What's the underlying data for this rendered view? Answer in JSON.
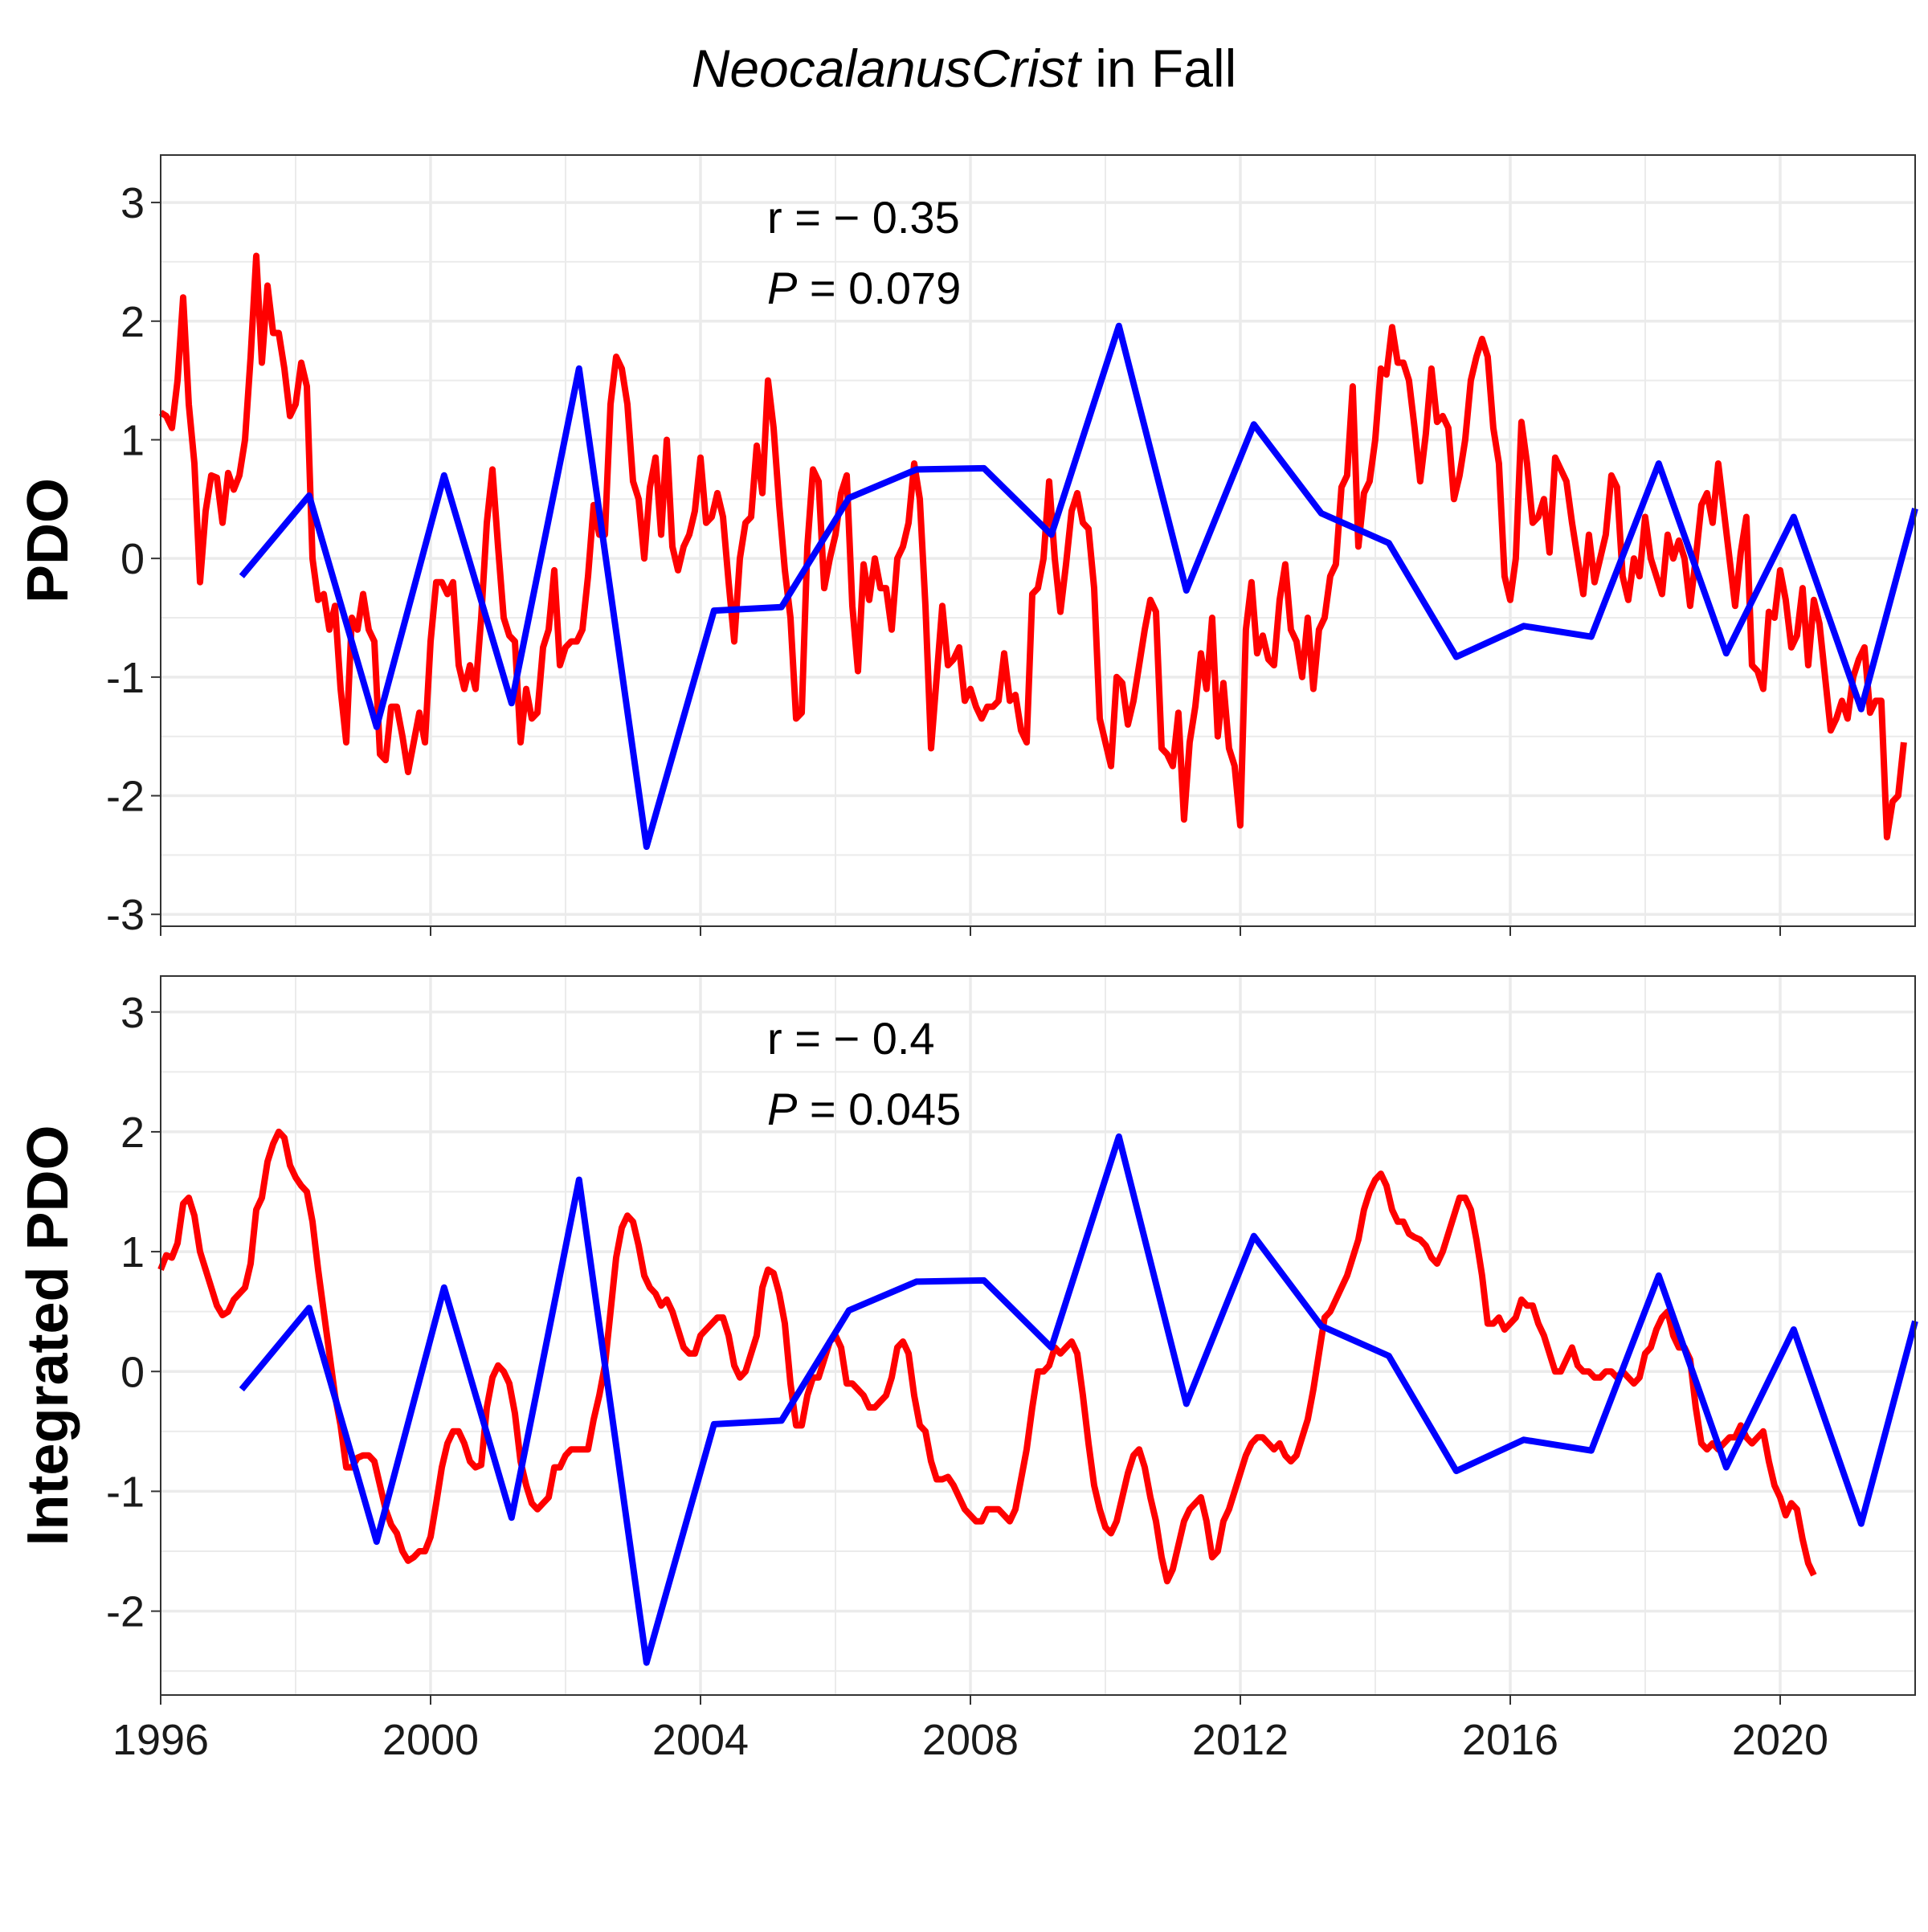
{
  "figure": {
    "title_italic": "NeocalanusCrist",
    "title_rest": " in Fall"
  },
  "colors": {
    "index_line": "#ff0000",
    "abundance_line": "#0000ff",
    "grid": "#ebebeb",
    "panel_border": "#333333"
  },
  "chart_data": [
    {
      "type": "line",
      "ylabel": "PDO",
      "xlim": [
        1996,
        2022
      ],
      "ylim": [
        -3.1,
        3.4
      ],
      "y_ticks": [
        3,
        2,
        1,
        0,
        -1,
        -2,
        -3
      ],
      "y_tick_labels": [
        "3",
        "2",
        "1",
        "0",
        "-1",
        "-2",
        "-3"
      ],
      "grid": true,
      "annotation": {
        "r_label": "r = − 0.35",
        "p_symbol": "P",
        "p_rest": " = 0.079"
      },
      "series": [
        {
          "color": "red",
          "x_start": 1996.0,
          "x_step": 0.08333,
          "values": [
            1.23,
            1.2,
            1.1,
            1.5,
            2.2,
            1.3,
            0.8,
            -0.2,
            0.4,
            0.7,
            0.68,
            0.3,
            0.72,
            0.58,
            0.7,
            1.0,
            1.7,
            2.55,
            1.65,
            2.3,
            1.9,
            1.9,
            1.6,
            1.2,
            1.3,
            1.65,
            1.45,
            0.0,
            -0.35,
            -0.3,
            -0.6,
            -0.4,
            -1.1,
            -1.55,
            -0.5,
            -0.6,
            -0.3,
            -0.6,
            -0.7,
            -1.65,
            -1.7,
            -1.25,
            -1.25,
            -1.5,
            -1.8,
            -1.55,
            -1.3,
            -1.55,
            -0.7,
            -0.2,
            -0.2,
            -0.3,
            -0.2,
            -0.9,
            -1.1,
            -0.9,
            -1.1,
            -0.5,
            0.3,
            0.75,
            0.1,
            -0.5,
            -0.65,
            -0.7,
            -1.55,
            -1.1,
            -1.35,
            -1.3,
            -0.75,
            -0.6,
            -0.1,
            -0.9,
            -0.75,
            -0.7,
            -0.7,
            -0.6,
            -0.15,
            0.45,
            0.2,
            0.2,
            1.3,
            1.7,
            1.6,
            1.3,
            0.65,
            0.5,
            0.0,
            0.6,
            0.85,
            0.2,
            1.0,
            0.1,
            -0.1,
            0.1,
            0.2,
            0.4,
            0.85,
            0.3,
            0.35,
            0.55,
            0.35,
            -0.2,
            -0.7,
            0.0,
            0.3,
            0.35,
            0.95,
            0.55,
            1.5,
            1.1,
            0.45,
            -0.1,
            -0.5,
            -1.35,
            -1.3,
            0.1,
            0.75,
            0.65,
            -0.25,
            0.0,
            0.2,
            0.55,
            0.7,
            -0.4,
            -0.95,
            -0.05,
            -0.35,
            0.0,
            -0.25,
            -0.25,
            -0.6,
            0.0,
            0.1,
            0.3,
            0.8,
            0.5,
            -0.4,
            -1.6,
            -1.0,
            -0.4,
            -0.9,
            -0.85,
            -0.75,
            -1.2,
            -1.1,
            -1.25,
            -1.35,
            -1.25,
            -1.25,
            -1.2,
            -0.8,
            -1.2,
            -1.15,
            -1.45,
            -1.55,
            -0.3,
            -0.25,
            0.0,
            0.65,
            0.0,
            -0.45,
            -0.05,
            0.4,
            0.55,
            0.3,
            0.25,
            -0.25,
            -1.35,
            -1.55,
            -1.75,
            -1.0,
            -1.05,
            -1.4,
            -1.2,
            -0.9,
            -0.6,
            -0.35,
            -0.45,
            -1.6,
            -1.65,
            -1.75,
            -1.3,
            -2.2,
            -1.55,
            -1.25,
            -0.8,
            -1.1,
            -0.5,
            -1.5,
            -1.05,
            -1.6,
            -1.75,
            -2.25,
            -0.6,
            -0.2,
            -0.8,
            -0.65,
            -0.85,
            -0.9,
            -0.35,
            -0.05,
            -0.6,
            -0.7,
            -1.0,
            -0.5,
            -1.1,
            -0.6,
            -0.5,
            -0.15,
            -0.05,
            0.6,
            0.7,
            1.45,
            0.1,
            0.55,
            0.65,
            1.0,
            1.6,
            1.55,
            1.95,
            1.65,
            1.65,
            1.5,
            1.1,
            0.65,
            1.05,
            1.6,
            1.15,
            1.2,
            1.1,
            0.5,
            0.7,
            1.0,
            1.5,
            1.7,
            1.85,
            1.7,
            1.1,
            0.8,
            -0.15,
            -0.35,
            0.0,
            1.15,
            0.8,
            0.3,
            0.35,
            0.5,
            0.05,
            0.85,
            0.75,
            0.65,
            0.3,
            0.0,
            -0.3,
            0.2,
            -0.2,
            0.0,
            0.2,
            0.7,
            0.6,
            -0.15,
            -0.35,
            0.0,
            -0.15,
            0.35,
            0.0,
            -0.15,
            -0.3,
            0.2,
            0.0,
            0.15,
            0.0,
            -0.4,
            0.0,
            0.45,
            0.55,
            0.3,
            0.8,
            0.4,
            0.0,
            -0.4,
            0.05,
            0.35,
            -0.9,
            -0.95,
            -1.1,
            -0.45,
            -0.5,
            -0.1,
            -0.35,
            -0.75,
            -0.65,
            -0.25,
            -0.9,
            -0.35,
            -0.55,
            -1.0,
            -1.45,
            -1.35,
            -1.2,
            -1.35,
            -1.0,
            -0.85,
            -0.75,
            -1.3,
            -1.2,
            -1.2,
            -2.35,
            -2.05,
            -2.0,
            -1.55
          ]
        },
        {
          "color": "blue",
          "x": [
            1997.2,
            1998.2,
            1999.2,
            2000.2,
            2001.2,
            2002.2,
            2003.2,
            2004.2,
            2005.2,
            2006.2,
            2007.2,
            2008.2,
            2009.2,
            2010.2,
            2011.2,
            2012.2,
            2013.2,
            2014.2,
            2015.2,
            2016.2,
            2017.2,
            2018.2,
            2019.2,
            2020.2,
            2021.2,
            2022.0
          ],
          "values": [
            -0.15,
            0.53,
            -1.42,
            0.7,
            -1.22,
            1.6,
            -2.43,
            -0.44,
            -0.41,
            0.51,
            0.75,
            0.76,
            0.2,
            1.96,
            -0.27,
            1.13,
            0.38,
            0.13,
            -0.83,
            -0.57,
            -0.66,
            0.8,
            -0.8,
            0.35,
            -1.27,
            0.42
          ]
        }
      ]
    },
    {
      "type": "line",
      "ylabel": "Integrated PDO",
      "xlim": [
        1996,
        2022
      ],
      "ylim": [
        -2.7,
        3.3
      ],
      "y_ticks": [
        3,
        2,
        1,
        0,
        -1,
        -2
      ],
      "y_tick_labels": [
        "3",
        "2",
        "1",
        "0",
        "-1",
        "-2"
      ],
      "x_ticks": [
        1996,
        2000,
        2004,
        2008,
        2012,
        2016,
        2020
      ],
      "x_tick_labels": [
        "1996",
        "2000",
        "2004",
        "2008",
        "2012",
        "2016",
        "2020"
      ],
      "grid": true,
      "annotation": {
        "r_label": "r = − 0.4",
        "p_symbol": "P",
        "p_rest": " = 0.045"
      },
      "series": [
        {
          "color": "red",
          "x_start": 1996.0,
          "x_step": 0.08333,
          "values": [
            0.85,
            0.97,
            0.95,
            1.07,
            1.4,
            1.45,
            1.3,
            1.0,
            0.85,
            0.7,
            0.55,
            0.47,
            0.5,
            0.6,
            0.65,
            0.7,
            0.9,
            1.35,
            1.45,
            1.75,
            1.9,
            2.0,
            1.95,
            1.72,
            1.62,
            1.55,
            1.5,
            1.25,
            0.85,
            0.5,
            0.15,
            -0.2,
            -0.45,
            -0.8,
            -0.8,
            -0.72,
            -0.7,
            -0.7,
            -0.75,
            -0.95,
            -1.15,
            -1.28,
            -1.35,
            -1.5,
            -1.58,
            -1.55,
            -1.5,
            -1.5,
            -1.38,
            -1.1,
            -0.8,
            -0.6,
            -0.5,
            -0.5,
            -0.6,
            -0.75,
            -0.8,
            -0.78,
            -0.3,
            -0.05,
            0.05,
            0.0,
            -0.1,
            -0.35,
            -0.75,
            -0.95,
            -1.1,
            -1.15,
            -1.1,
            -1.05,
            -0.8,
            -0.8,
            -0.7,
            -0.65,
            -0.65,
            -0.65,
            -0.65,
            -0.4,
            -0.2,
            0.05,
            0.5,
            0.95,
            1.2,
            1.3,
            1.25,
            1.05,
            0.8,
            0.7,
            0.65,
            0.55,
            0.6,
            0.5,
            0.35,
            0.2,
            0.15,
            0.15,
            0.3,
            0.35,
            0.4,
            0.45,
            0.45,
            0.3,
            0.05,
            -0.05,
            0.0,
            0.15,
            0.3,
            0.7,
            0.85,
            0.82,
            0.65,
            0.4,
            -0.1,
            -0.45,
            -0.45,
            -0.2,
            -0.05,
            -0.05,
            0.1,
            0.25,
            0.3,
            0.2,
            -0.1,
            -0.1,
            -0.15,
            -0.2,
            -0.3,
            -0.3,
            -0.25,
            -0.2,
            -0.05,
            0.2,
            0.25,
            0.15,
            -0.2,
            -0.45,
            -0.5,
            -0.75,
            -0.9,
            -0.9,
            -0.88,
            -0.95,
            -1.05,
            -1.15,
            -1.2,
            -1.25,
            -1.25,
            -1.15,
            -1.15,
            -1.15,
            -1.2,
            -1.25,
            -1.15,
            -0.9,
            -0.65,
            -0.3,
            0.0,
            0.0,
            0.05,
            0.2,
            0.15,
            0.2,
            0.25,
            0.15,
            -0.2,
            -0.6,
            -0.95,
            -1.15,
            -1.3,
            -1.35,
            -1.25,
            -1.05,
            -0.85,
            -0.7,
            -0.65,
            -0.8,
            -1.05,
            -1.25,
            -1.55,
            -1.75,
            -1.65,
            -1.45,
            -1.25,
            -1.15,
            -1.1,
            -1.05,
            -1.25,
            -1.55,
            -1.5,
            -1.25,
            -1.15,
            -1.0,
            -0.85,
            -0.7,
            -0.6,
            -0.55,
            -0.55,
            -0.6,
            -0.65,
            -0.6,
            -0.7,
            -0.75,
            -0.7,
            -0.55,
            -0.4,
            -0.15,
            0.15,
            0.45,
            0.5,
            0.6,
            0.7,
            0.8,
            0.95,
            1.1,
            1.35,
            1.5,
            1.6,
            1.65,
            1.55,
            1.35,
            1.25,
            1.25,
            1.15,
            1.12,
            1.1,
            1.05,
            0.95,
            0.9,
            1.0,
            1.15,
            1.3,
            1.45,
            1.45,
            1.35,
            1.1,
            0.8,
            0.4,
            0.4,
            0.45,
            0.35,
            0.4,
            0.45,
            0.6,
            0.55,
            0.55,
            0.4,
            0.3,
            0.15,
            0.0,
            0.0,
            0.1,
            0.2,
            0.05,
            0.0,
            0.0,
            -0.05,
            -0.05,
            0.0,
            0.0,
            -0.05,
            0.0,
            -0.05,
            -0.1,
            -0.05,
            0.15,
            0.2,
            0.35,
            0.45,
            0.5,
            0.3,
            0.2,
            0.2,
            0.1,
            -0.3,
            -0.6,
            -0.65,
            -0.6,
            -0.65,
            -0.6,
            -0.55,
            -0.55,
            -0.45,
            -0.55,
            -0.6,
            -0.55,
            -0.5,
            -0.75,
            -0.95,
            -1.05,
            -1.2,
            -1.1,
            -1.15,
            -1.4,
            -1.6,
            -1.7
          ]
        },
        {
          "color": "blue",
          "x": [
            1997.2,
            1998.2,
            1999.2,
            2000.2,
            2001.2,
            2002.2,
            2003.2,
            2004.2,
            2005.2,
            2006.2,
            2007.2,
            2008.2,
            2009.2,
            2010.2,
            2011.2,
            2012.2,
            2013.2,
            2014.2,
            2015.2,
            2016.2,
            2017.2,
            2018.2,
            2019.2,
            2020.2,
            2021.2,
            2022.0
          ],
          "values": [
            -0.15,
            0.53,
            -1.42,
            0.7,
            -1.22,
            1.6,
            -2.43,
            -0.44,
            -0.41,
            0.51,
            0.75,
            0.76,
            0.2,
            1.96,
            -0.27,
            1.13,
            0.38,
            0.13,
            -0.83,
            -0.57,
            -0.66,
            0.8,
            -0.8,
            0.35,
            -1.27,
            0.42
          ]
        }
      ]
    }
  ]
}
